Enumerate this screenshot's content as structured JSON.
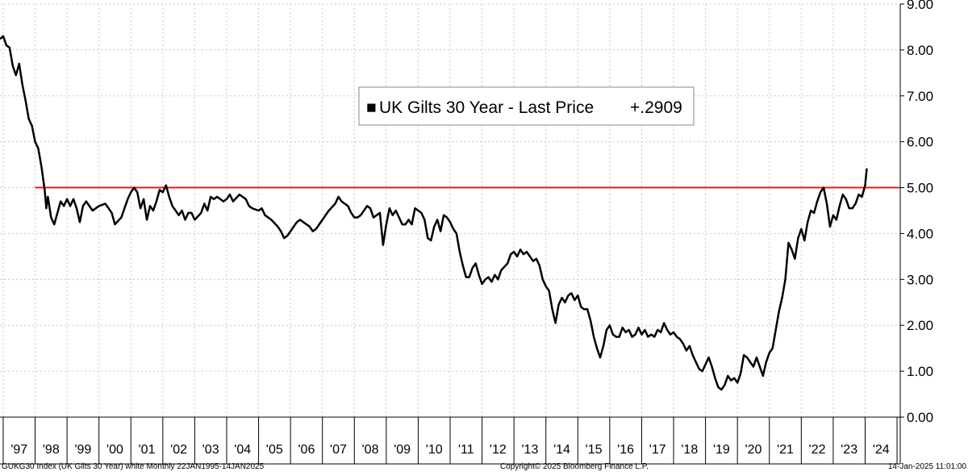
{
  "chart_data": {
    "type": "line",
    "legend": {
      "marker": "■",
      "label": "UK Gilts 30 Year - Last Price",
      "last_value": "+.2909",
      "placement": "top-center"
    },
    "y_axis": {
      "position": "right",
      "range": [
        0,
        9
      ],
      "ticks": [
        "0.00",
        "1.00",
        "2.00",
        "3.00",
        "4.00",
        "5.00",
        "6.00",
        "7.00",
        "8.00",
        "9.00"
      ]
    },
    "x_axis": {
      "range": [
        1996.9,
        2025.1
      ],
      "tick_labels": [
        "'97",
        "'98",
        "'99",
        "'00",
        "'01",
        "'02",
        "'03",
        "'04",
        "'05",
        "'06",
        "'07",
        "'08",
        "'09",
        "'10",
        "'11",
        "'12",
        "'13",
        "'14",
        "'15",
        "'16",
        "'17",
        "'18",
        "'19",
        "'20",
        "'21",
        "'22",
        "'23",
        "'24"
      ],
      "tick_years": [
        1997,
        1998,
        1999,
        2000,
        2001,
        2002,
        2003,
        2004,
        2005,
        2006,
        2007,
        2008,
        2009,
        2010,
        2011,
        2012,
        2013,
        2014,
        2015,
        2016,
        2017,
        2018,
        2019,
        2020,
        2021,
        2022,
        2023,
        2024
      ]
    },
    "grid": true,
    "reference_line": {
      "y": 5.0,
      "x_start": 1998.0,
      "color": "#e0201b"
    },
    "series": [
      {
        "color": "#000000",
        "points": [
          [
            1996.92,
            8.25
          ],
          [
            1997.0,
            8.3
          ],
          [
            1997.1,
            8.1
          ],
          [
            1997.2,
            8.05
          ],
          [
            1997.3,
            7.65
          ],
          [
            1997.4,
            7.45
          ],
          [
            1997.5,
            7.7
          ],
          [
            1997.6,
            7.25
          ],
          [
            1997.7,
            6.9
          ],
          [
            1997.8,
            6.5
          ],
          [
            1997.9,
            6.35
          ],
          [
            1998.0,
            6.0
          ],
          [
            1998.1,
            5.85
          ],
          [
            1998.2,
            5.45
          ],
          [
            1998.3,
            4.95
          ],
          [
            1998.35,
            4.55
          ],
          [
            1998.4,
            4.8
          ],
          [
            1998.5,
            4.35
          ],
          [
            1998.6,
            4.2
          ],
          [
            1998.7,
            4.45
          ],
          [
            1998.8,
            4.7
          ],
          [
            1998.9,
            4.6
          ],
          [
            1999.0,
            4.75
          ],
          [
            1999.1,
            4.6
          ],
          [
            1999.2,
            4.75
          ],
          [
            1999.3,
            4.55
          ],
          [
            1999.4,
            4.25
          ],
          [
            1999.5,
            4.6
          ],
          [
            1999.6,
            4.7
          ],
          [
            1999.8,
            4.5
          ],
          [
            2000.0,
            4.6
          ],
          [
            2000.2,
            4.65
          ],
          [
            2000.4,
            4.45
          ],
          [
            2000.5,
            4.2
          ],
          [
            2000.7,
            4.35
          ],
          [
            2000.9,
            4.75
          ],
          [
            2001.0,
            4.9
          ],
          [
            2001.1,
            5.0
          ],
          [
            2001.2,
            4.9
          ],
          [
            2001.3,
            4.55
          ],
          [
            2001.4,
            4.75
          ],
          [
            2001.5,
            4.3
          ],
          [
            2001.6,
            4.6
          ],
          [
            2001.7,
            4.5
          ],
          [
            2001.8,
            4.7
          ],
          [
            2001.9,
            4.95
          ],
          [
            2002.0,
            4.9
          ],
          [
            2002.1,
            5.05
          ],
          [
            2002.2,
            4.8
          ],
          [
            2002.3,
            4.6
          ],
          [
            2002.5,
            4.4
          ],
          [
            2002.6,
            4.5
          ],
          [
            2002.7,
            4.3
          ],
          [
            2002.8,
            4.45
          ],
          [
            2002.9,
            4.45
          ],
          [
            2003.0,
            4.3
          ],
          [
            2003.2,
            4.45
          ],
          [
            2003.3,
            4.65
          ],
          [
            2003.4,
            4.5
          ],
          [
            2003.5,
            4.8
          ],
          [
            2003.6,
            4.75
          ],
          [
            2003.7,
            4.8
          ],
          [
            2003.9,
            4.7
          ],
          [
            2004.0,
            4.75
          ],
          [
            2004.1,
            4.85
          ],
          [
            2004.2,
            4.7
          ],
          [
            2004.4,
            4.85
          ],
          [
            2004.6,
            4.75
          ],
          [
            2004.7,
            4.6
          ],
          [
            2004.8,
            4.55
          ],
          [
            2005.0,
            4.5
          ],
          [
            2005.1,
            4.55
          ],
          [
            2005.2,
            4.4
          ],
          [
            2005.4,
            4.3
          ],
          [
            2005.6,
            4.15
          ],
          [
            2005.7,
            4.05
          ],
          [
            2005.8,
            3.9
          ],
          [
            2005.9,
            3.95
          ],
          [
            2006.0,
            4.05
          ],
          [
            2006.2,
            4.25
          ],
          [
            2006.3,
            4.3
          ],
          [
            2006.4,
            4.25
          ],
          [
            2006.6,
            4.15
          ],
          [
            2006.7,
            4.05
          ],
          [
            2006.8,
            4.1
          ],
          [
            2007.0,
            4.3
          ],
          [
            2007.2,
            4.5
          ],
          [
            2007.4,
            4.65
          ],
          [
            2007.5,
            4.8
          ],
          [
            2007.6,
            4.7
          ],
          [
            2007.8,
            4.6
          ],
          [
            2007.9,
            4.45
          ],
          [
            2008.0,
            4.35
          ],
          [
            2008.1,
            4.35
          ],
          [
            2008.2,
            4.4
          ],
          [
            2008.4,
            4.6
          ],
          [
            2008.5,
            4.55
          ],
          [
            2008.6,
            4.35
          ],
          [
            2008.8,
            4.45
          ],
          [
            2008.9,
            3.75
          ],
          [
            2009.0,
            4.2
          ],
          [
            2009.1,
            4.55
          ],
          [
            2009.2,
            4.4
          ],
          [
            2009.3,
            4.5
          ],
          [
            2009.4,
            4.35
          ],
          [
            2009.5,
            4.2
          ],
          [
            2009.6,
            4.2
          ],
          [
            2009.7,
            4.3
          ],
          [
            2009.8,
            4.2
          ],
          [
            2009.9,
            4.55
          ],
          [
            2010.0,
            4.5
          ],
          [
            2010.1,
            4.45
          ],
          [
            2010.2,
            4.3
          ],
          [
            2010.3,
            3.9
          ],
          [
            2010.4,
            3.85
          ],
          [
            2010.5,
            4.15
          ],
          [
            2010.6,
            4.3
          ],
          [
            2010.7,
            4.05
          ],
          [
            2010.8,
            4.4
          ],
          [
            2010.9,
            4.35
          ],
          [
            2011.0,
            4.25
          ],
          [
            2011.1,
            4.1
          ],
          [
            2011.2,
            4.0
          ],
          [
            2011.3,
            3.6
          ],
          [
            2011.4,
            3.3
          ],
          [
            2011.5,
            3.05
          ],
          [
            2011.6,
            3.05
          ],
          [
            2011.7,
            3.25
          ],
          [
            2011.8,
            3.35
          ],
          [
            2011.9,
            3.1
          ],
          [
            2012.0,
            2.9
          ],
          [
            2012.1,
            3.0
          ],
          [
            2012.2,
            3.05
          ],
          [
            2012.3,
            2.95
          ],
          [
            2012.4,
            3.1
          ],
          [
            2012.5,
            3.0
          ],
          [
            2012.6,
            3.2
          ],
          [
            2012.8,
            3.35
          ],
          [
            2012.9,
            3.55
          ],
          [
            2013.0,
            3.6
          ],
          [
            2013.1,
            3.5
          ],
          [
            2013.2,
            3.65
          ],
          [
            2013.3,
            3.55
          ],
          [
            2013.4,
            3.6
          ],
          [
            2013.5,
            3.5
          ],
          [
            2013.6,
            3.4
          ],
          [
            2013.7,
            3.45
          ],
          [
            2013.8,
            3.3
          ],
          [
            2013.9,
            3.0
          ],
          [
            2014.0,
            2.85
          ],
          [
            2014.1,
            2.75
          ],
          [
            2014.2,
            2.35
          ],
          [
            2014.3,
            2.05
          ],
          [
            2014.4,
            2.45
          ],
          [
            2014.5,
            2.6
          ],
          [
            2014.6,
            2.5
          ],
          [
            2014.7,
            2.65
          ],
          [
            2014.8,
            2.7
          ],
          [
            2014.9,
            2.55
          ],
          [
            2015.0,
            2.65
          ],
          [
            2015.1,
            2.4
          ],
          [
            2015.2,
            2.35
          ],
          [
            2015.3,
            2.35
          ],
          [
            2015.4,
            2.1
          ],
          [
            2015.5,
            1.75
          ],
          [
            2015.6,
            1.5
          ],
          [
            2015.7,
            1.3
          ],
          [
            2015.8,
            1.55
          ],
          [
            2015.9,
            1.9
          ],
          [
            2016.0,
            2.0
          ],
          [
            2016.1,
            1.8
          ],
          [
            2016.2,
            1.75
          ],
          [
            2016.3,
            1.75
          ],
          [
            2016.4,
            1.95
          ],
          [
            2016.5,
            1.85
          ],
          [
            2016.6,
            1.9
          ],
          [
            2016.7,
            1.75
          ],
          [
            2016.8,
            1.8
          ],
          [
            2016.9,
            1.95
          ],
          [
            2017.0,
            1.8
          ],
          [
            2017.1,
            1.9
          ],
          [
            2017.2,
            1.75
          ],
          [
            2017.3,
            1.8
          ],
          [
            2017.4,
            1.75
          ],
          [
            2017.5,
            1.9
          ],
          [
            2017.6,
            1.85
          ],
          [
            2017.7,
            2.05
          ],
          [
            2017.8,
            1.9
          ],
          [
            2017.9,
            1.8
          ],
          [
            2018.0,
            1.85
          ],
          [
            2018.1,
            1.75
          ],
          [
            2018.2,
            1.7
          ],
          [
            2018.3,
            1.6
          ],
          [
            2018.4,
            1.45
          ],
          [
            2018.5,
            1.55
          ],
          [
            2018.6,
            1.35
          ],
          [
            2018.7,
            1.2
          ],
          [
            2018.8,
            1.05
          ],
          [
            2018.9,
            1.0
          ],
          [
            2019.0,
            1.15
          ],
          [
            2019.1,
            1.3
          ],
          [
            2019.2,
            1.1
          ],
          [
            2019.3,
            0.85
          ],
          [
            2019.4,
            0.65
          ],
          [
            2019.5,
            0.6
          ],
          [
            2019.6,
            0.7
          ],
          [
            2019.7,
            0.9
          ],
          [
            2019.8,
            0.8
          ],
          [
            2019.9,
            0.85
          ],
          [
            2020.0,
            0.75
          ],
          [
            2020.1,
            0.95
          ],
          [
            2020.2,
            1.35
          ],
          [
            2020.3,
            1.3
          ],
          [
            2020.4,
            1.2
          ],
          [
            2020.5,
            1.1
          ],
          [
            2020.6,
            1.3
          ],
          [
            2020.7,
            1.1
          ],
          [
            2020.8,
            0.9
          ],
          [
            2020.9,
            1.2
          ],
          [
            2021.0,
            1.4
          ],
          [
            2021.1,
            1.5
          ],
          [
            2021.2,
            1.9
          ],
          [
            2021.3,
            2.3
          ],
          [
            2021.4,
            2.6
          ],
          [
            2021.5,
            3.0
          ],
          [
            2021.6,
            3.8
          ],
          [
            2021.7,
            3.65
          ],
          [
            2021.8,
            3.45
          ],
          [
            2021.9,
            3.9
          ],
          [
            2022.0,
            4.1
          ],
          [
            2022.1,
            3.85
          ],
          [
            2022.2,
            4.25
          ],
          [
            2022.3,
            4.5
          ],
          [
            2022.4,
            4.45
          ],
          [
            2022.5,
            4.7
          ],
          [
            2022.6,
            4.9
          ],
          [
            2022.7,
            5.0
          ],
          [
            2022.8,
            4.65
          ],
          [
            2022.9,
            4.15
          ],
          [
            2023.0,
            4.4
          ],
          [
            2023.1,
            4.3
          ],
          [
            2023.2,
            4.6
          ],
          [
            2023.3,
            4.85
          ],
          [
            2023.4,
            4.75
          ],
          [
            2023.5,
            4.55
          ],
          [
            2023.6,
            4.55
          ],
          [
            2023.7,
            4.65
          ],
          [
            2023.8,
            4.85
          ],
          [
            2023.9,
            4.8
          ],
          [
            2024.0,
            5.05
          ],
          [
            2024.05,
            5.4
          ]
        ]
      }
    ]
  },
  "footer": {
    "left": "GUKG30 Index (UK Gilts 30 Year) white  Monthly 22JAN1995-14JAN2025",
    "center": "Copyright© 2025 Bloomberg Finance L.P.",
    "right": "14-Jan-2025 11:01:00"
  }
}
